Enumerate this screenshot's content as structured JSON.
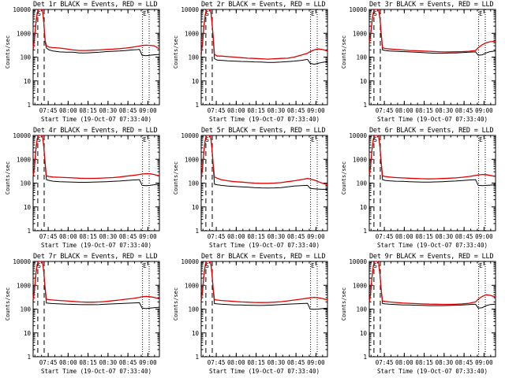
{
  "chart_data": {
    "type": "line",
    "layout": "3x3 grid",
    "y_scale": "log",
    "ylabel": "Counts/sec",
    "xlabel": "Start Time (19-Oct-07 07:33:40)",
    "x_ticks": [
      "07:45",
      "08:00",
      "08:15",
      "08:30",
      "08:45",
      "09:00"
    ],
    "y_ticks": [
      "1",
      "10",
      "100",
      "1000",
      "10000"
    ],
    "ylim": [
      1,
      10000
    ],
    "xlim_minutes": [
      0,
      95
    ],
    "series_names": [
      "Events",
      "LLD"
    ],
    "series_colors": {
      "Events": "#000000",
      "LLD": "#e00000"
    },
    "vertical_markers": {
      "dashed_minutes": [
        3.5,
        8.3
      ],
      "dotted_minutes": [
        82.3,
        87.3
      ]
    },
    "annotations": [
      "S",
      "E"
    ],
    "panels": [
      {
        "title": "Det 1r BLACK = Events, RED = LLD",
        "x": [
          0,
          1,
          2,
          3,
          4,
          5,
          6,
          7,
          8,
          9,
          10,
          12,
          15,
          20,
          25,
          30,
          35,
          40,
          45,
          50,
          55,
          60,
          65,
          70,
          75,
          80,
          82,
          85,
          88,
          91,
          95
        ],
        "lld": [
          220,
          600,
          2500,
          7000,
          10000,
          10000,
          10000,
          10000,
          3000,
          500,
          300,
          260,
          250,
          240,
          220,
          200,
          190,
          190,
          195,
          200,
          210,
          215,
          225,
          240,
          260,
          290,
          305,
          315,
          310,
          300,
          220
        ],
        "events": [
          200,
          550,
          2300,
          6500,
          10000,
          10000,
          10000,
          10000,
          2700,
          420,
          240,
          200,
          180,
          165,
          160,
          160,
          150,
          150,
          155,
          160,
          170,
          175,
          180,
          190,
          200,
          210,
          120,
          115,
          120,
          125,
          130
        ]
      },
      {
        "title": "Det 2r BLACK = Events, RED = LLD",
        "x": [
          0,
          1,
          2,
          3,
          4,
          5,
          6,
          7,
          8,
          9,
          10,
          12,
          15,
          20,
          25,
          30,
          35,
          40,
          45,
          50,
          55,
          60,
          65,
          70,
          75,
          80,
          82,
          85,
          88,
          91,
          95
        ],
        "lld": [
          150,
          400,
          2000,
          6000,
          10000,
          10000,
          10000,
          10000,
          3500,
          700,
          130,
          110,
          110,
          105,
          100,
          95,
          90,
          88,
          85,
          82,
          85,
          88,
          90,
          100,
          120,
          145,
          170,
          200,
          220,
          210,
          180
        ],
        "events": [
          120,
          350,
          1800,
          5500,
          10000,
          10000,
          10000,
          10000,
          3000,
          600,
          85,
          75,
          73,
          70,
          68,
          66,
          65,
          63,
          62,
          60,
          60,
          62,
          65,
          68,
          72,
          80,
          55,
          50,
          55,
          60,
          65
        ]
      },
      {
        "title": "Det 3r BLACK = Events, RED = LLD",
        "x": [
          0,
          1,
          2,
          3,
          4,
          5,
          6,
          7,
          8,
          9,
          10,
          12,
          15,
          20,
          25,
          30,
          35,
          40,
          45,
          50,
          55,
          60,
          65,
          70,
          75,
          80,
          82,
          85,
          88,
          91,
          95
        ],
        "lld": [
          400,
          900,
          3000,
          7500,
          10000,
          10000,
          10000,
          10000,
          4500,
          900,
          250,
          230,
          220,
          210,
          200,
          190,
          185,
          180,
          175,
          170,
          165,
          165,
          168,
          170,
          175,
          190,
          250,
          330,
          400,
          440,
          460
        ],
        "events": [
          380,
          850,
          2800,
          7000,
          10000,
          10000,
          10000,
          10000,
          4000,
          800,
          200,
          190,
          180,
          175,
          170,
          165,
          160,
          155,
          150,
          145,
          145,
          148,
          150,
          155,
          160,
          165,
          120,
          125,
          150,
          170,
          180
        ]
      },
      {
        "title": "Det 4r BLACK = Events, RED = LLD",
        "x": [
          0,
          1,
          2,
          3,
          4,
          5,
          6,
          7,
          8,
          9,
          10,
          12,
          15,
          20,
          25,
          30,
          35,
          40,
          45,
          50,
          55,
          60,
          65,
          70,
          75,
          80,
          82,
          85,
          88,
          91,
          95
        ],
        "lld": [
          200,
          500,
          2500,
          7000,
          10000,
          10000,
          10000,
          10000,
          3500,
          700,
          200,
          190,
          180,
          175,
          170,
          165,
          160,
          158,
          158,
          160,
          165,
          170,
          180,
          195,
          210,
          230,
          240,
          250,
          245,
          230,
          200
        ],
        "events": [
          180,
          450,
          2300,
          6500,
          10000,
          10000,
          10000,
          10000,
          3200,
          600,
          140,
          130,
          120,
          115,
          112,
          110,
          108,
          108,
          110,
          112,
          115,
          118,
          122,
          128,
          135,
          140,
          80,
          78,
          80,
          85,
          90
        ]
      },
      {
        "title": "Det 5r BLACK = Events, RED = LLD",
        "x": [
          0,
          1,
          2,
          3,
          4,
          5,
          6,
          7,
          8,
          9,
          10,
          12,
          15,
          20,
          25,
          30,
          35,
          40,
          45,
          50,
          55,
          60,
          65,
          70,
          75,
          80,
          82,
          85,
          88,
          91,
          95
        ],
        "lld": [
          180,
          450,
          2200,
          6500,
          10000,
          10000,
          10000,
          10000,
          3200,
          600,
          180,
          160,
          140,
          125,
          115,
          110,
          105,
          100,
          98,
          98,
          100,
          105,
          115,
          125,
          140,
          155,
          150,
          135,
          115,
          100,
          85
        ],
        "events": [
          150,
          400,
          2000,
          6000,
          10000,
          10000,
          10000,
          10000,
          2900,
          500,
          90,
          85,
          80,
          75,
          72,
          70,
          68,
          65,
          63,
          62,
          63,
          65,
          70,
          75,
          78,
          80,
          60,
          58,
          56,
          55,
          55
        ]
      },
      {
        "title": "Det 6r BLACK = Events, RED = LLD",
        "x": [
          0,
          1,
          2,
          3,
          4,
          5,
          6,
          7,
          8,
          9,
          10,
          12,
          15,
          20,
          25,
          30,
          35,
          40,
          45,
          50,
          55,
          60,
          65,
          70,
          75,
          80,
          82,
          85,
          88,
          91,
          95
        ],
        "lld": [
          220,
          550,
          2500,
          7000,
          10000,
          10000,
          10000,
          10000,
          3500,
          700,
          200,
          190,
          180,
          170,
          165,
          160,
          155,
          152,
          150,
          152,
          155,
          160,
          165,
          175,
          190,
          210,
          220,
          230,
          225,
          210,
          190
        ],
        "events": [
          200,
          500,
          2300,
          6500,
          10000,
          10000,
          10000,
          10000,
          3200,
          600,
          140,
          130,
          125,
          120,
          118,
          115,
          112,
          110,
          110,
          112,
          115,
          118,
          122,
          128,
          135,
          140,
          80,
          78,
          80,
          82,
          85
        ]
      },
      {
        "title": "Det 7r BLACK = Events, RED = LLD",
        "x": [
          0,
          1,
          2,
          3,
          4,
          5,
          6,
          7,
          8,
          9,
          10,
          12,
          15,
          20,
          25,
          30,
          35,
          40,
          45,
          50,
          55,
          60,
          65,
          70,
          75,
          80,
          82,
          85,
          88,
          91,
          95
        ],
        "lld": [
          250,
          650,
          2800,
          7500,
          10000,
          10000,
          10000,
          10000,
          3800,
          750,
          260,
          250,
          240,
          230,
          220,
          210,
          200,
          195,
          195,
          200,
          210,
          225,
          240,
          260,
          280,
          310,
          330,
          340,
          330,
          310,
          270
        ],
        "events": [
          230,
          600,
          2600,
          7000,
          10000,
          10000,
          10000,
          10000,
          3500,
          650,
          180,
          175,
          170,
          165,
          160,
          158,
          155,
          153,
          153,
          155,
          160,
          165,
          170,
          175,
          180,
          185,
          110,
          105,
          110,
          115,
          120
        ]
      },
      {
        "title": "Det 8r BLACK = Events, RED = LLD",
        "x": [
          0,
          1,
          2,
          3,
          4,
          5,
          6,
          7,
          8,
          9,
          10,
          12,
          15,
          20,
          25,
          30,
          35,
          40,
          45,
          50,
          55,
          60,
          65,
          70,
          75,
          80,
          82,
          85,
          88,
          91,
          95
        ],
        "lld": [
          240,
          600,
          2600,
          7000,
          10000,
          10000,
          10000,
          10000,
          3600,
          700,
          250,
          240,
          230,
          220,
          210,
          200,
          195,
          190,
          188,
          190,
          195,
          205,
          220,
          240,
          260,
          285,
          300,
          310,
          300,
          280,
          240
        ],
        "events": [
          220,
          550,
          2400,
          6500,
          10000,
          10000,
          10000,
          10000,
          3300,
          600,
          170,
          165,
          160,
          155,
          150,
          148,
          145,
          143,
          142,
          145,
          150,
          155,
          160,
          165,
          170,
          175,
          100,
          98,
          100,
          105,
          110
        ]
      },
      {
        "title": "Det 9r BLACK = Events, RED = LLD",
        "x": [
          0,
          1,
          2,
          3,
          4,
          5,
          6,
          7,
          8,
          9,
          10,
          12,
          15,
          20,
          25,
          30,
          35,
          40,
          45,
          50,
          55,
          60,
          65,
          70,
          75,
          80,
          82,
          85,
          88,
          91,
          95
        ],
        "lld": [
          200,
          500,
          2200,
          6500,
          10000,
          10000,
          10000,
          9000,
          3000,
          600,
          220,
          210,
          200,
          190,
          180,
          175,
          170,
          165,
          162,
          160,
          158,
          158,
          160,
          165,
          175,
          200,
          260,
          340,
          400,
          380,
          320
        ],
        "events": [
          180,
          450,
          2000,
          6000,
          10000,
          10000,
          10000,
          8500,
          2800,
          550,
          170,
          165,
          160,
          155,
          150,
          148,
          145,
          143,
          140,
          140,
          140,
          142,
          145,
          150,
          155,
          160,
          110,
          115,
          140,
          155,
          160
        ]
      }
    ]
  }
}
